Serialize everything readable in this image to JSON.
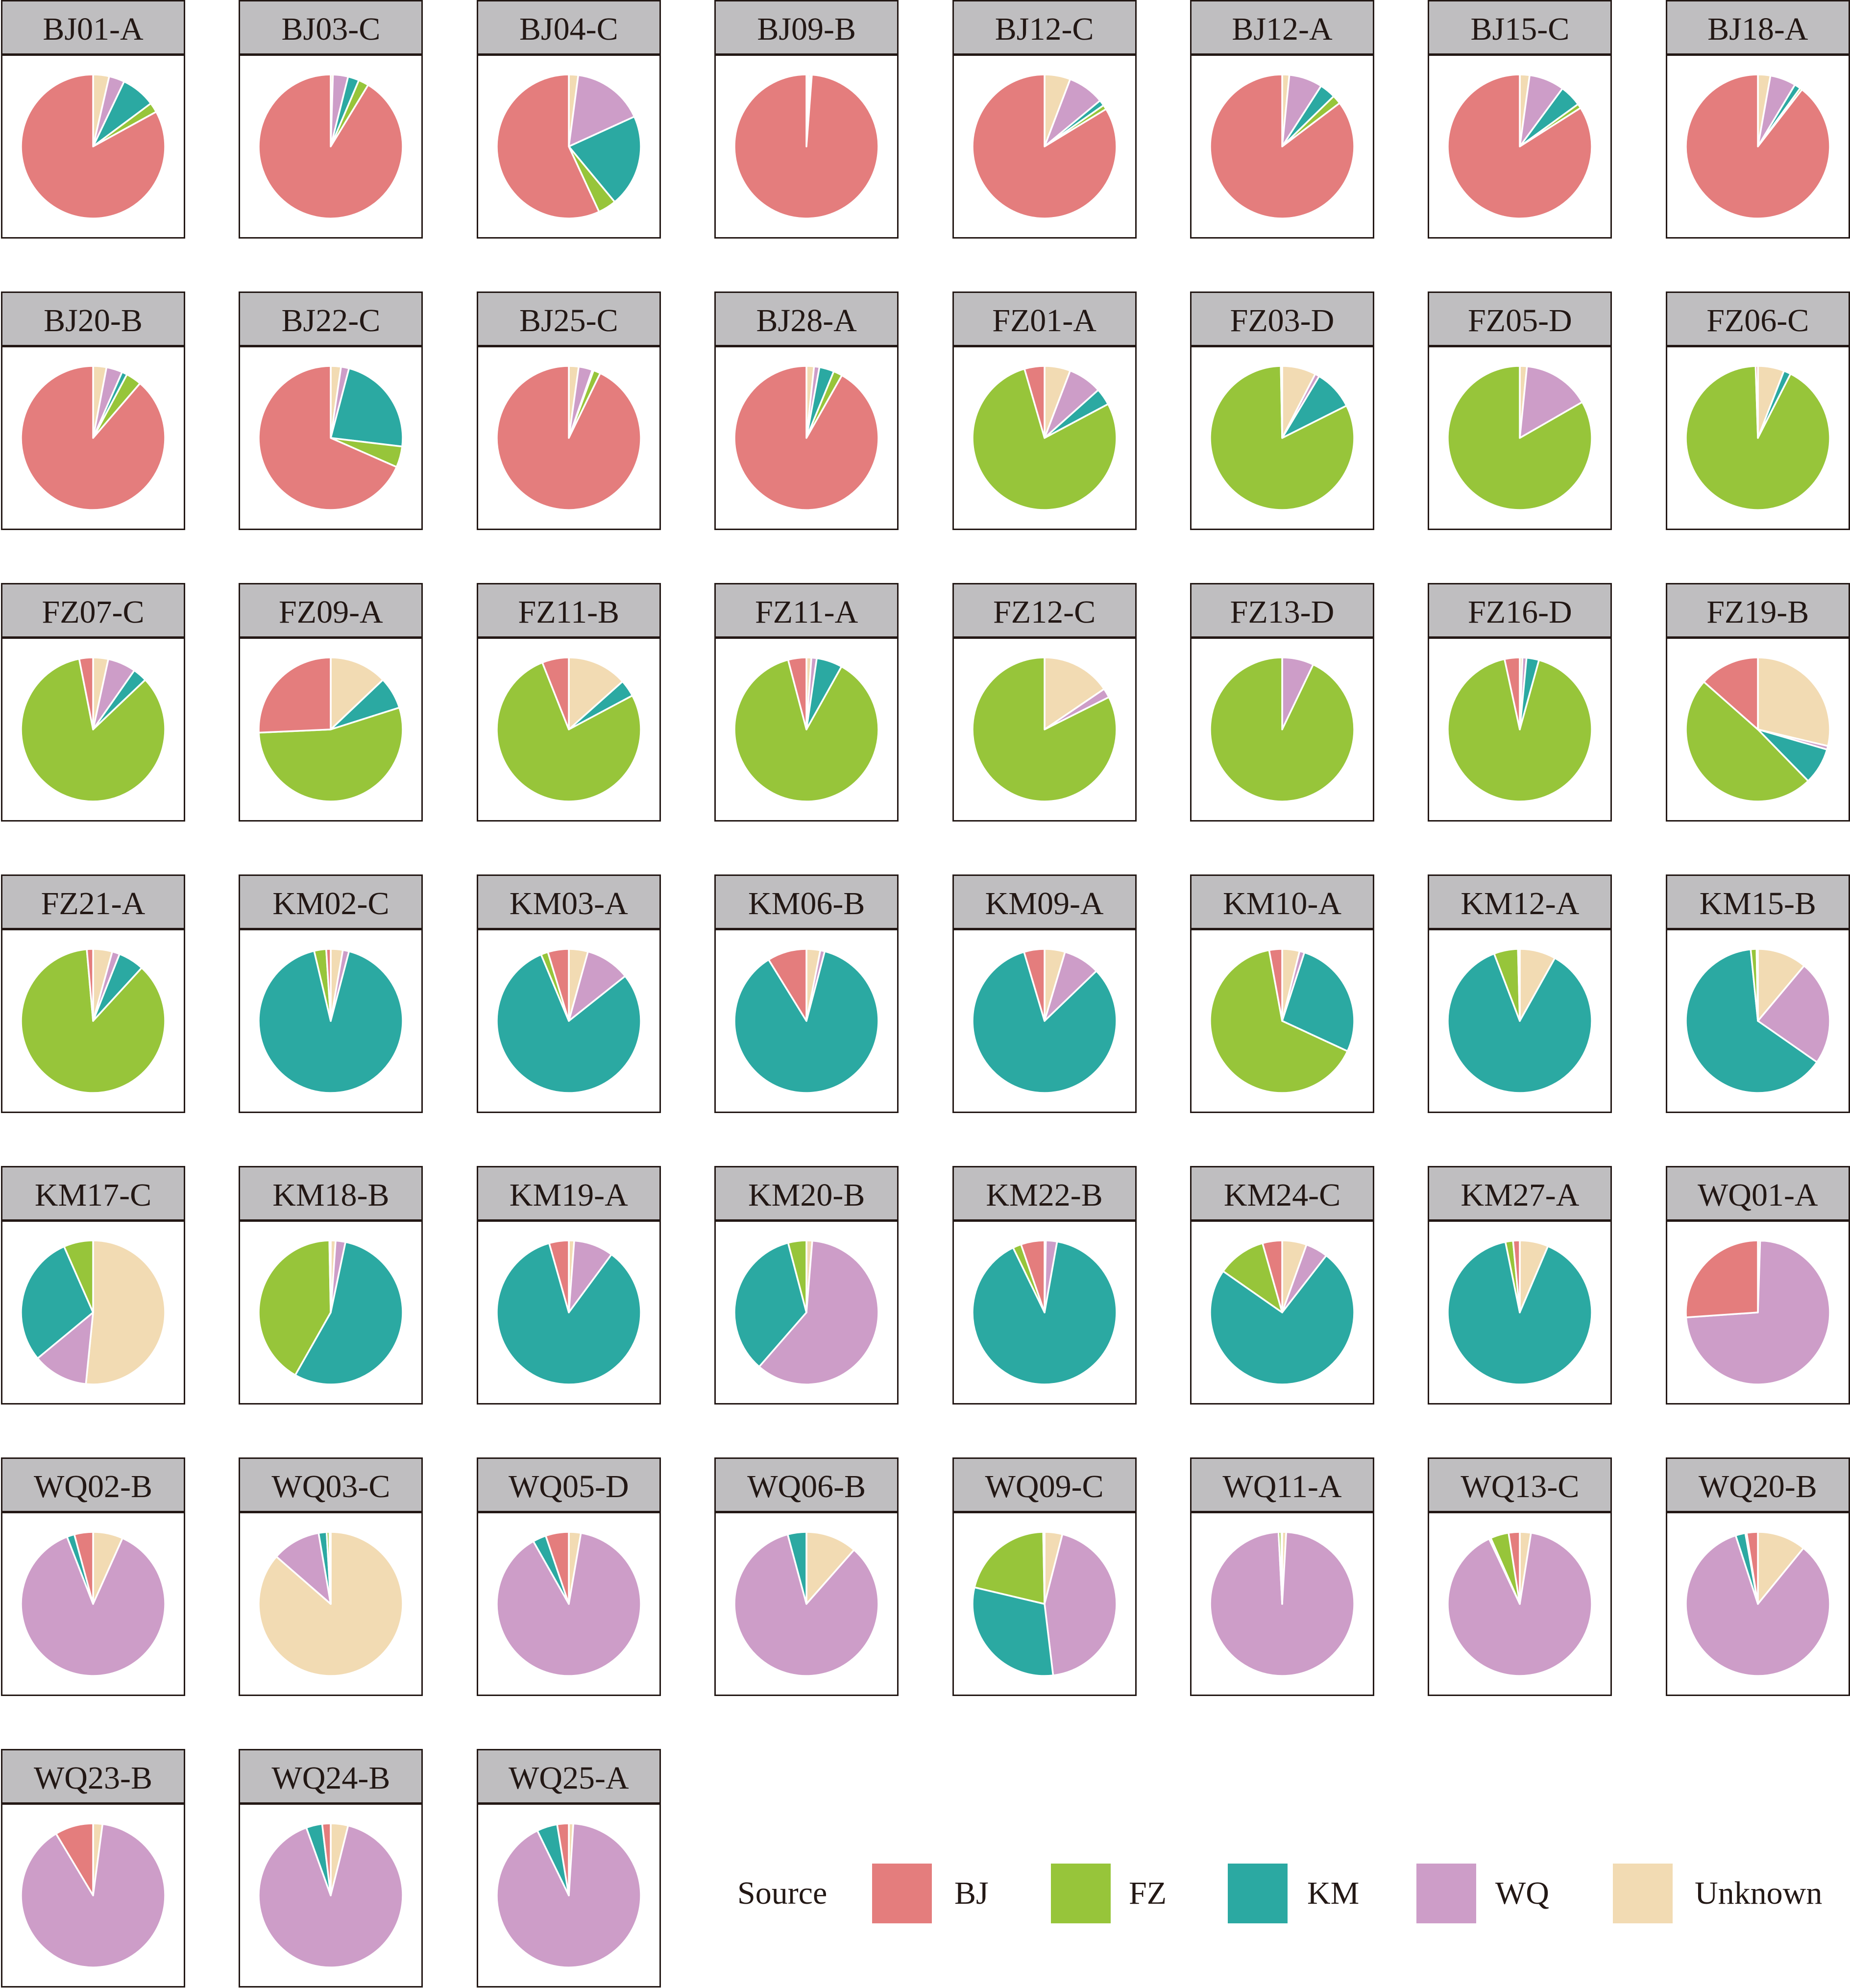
{
  "chart_data": {
    "type": "pie",
    "title": "",
    "units": "percent",
    "categories": [
      "BJ",
      "FZ",
      "KM",
      "WQ",
      "Unknown"
    ],
    "legend": {
      "title": "Source",
      "position": "bottom-right",
      "entries": [
        {
          "label": "BJ",
          "color": "#e47d7d"
        },
        {
          "label": "FZ",
          "color": "#97c53a"
        },
        {
          "label": "KM",
          "color": "#2ba9a2"
        },
        {
          "label": "WQ",
          "color": "#cd9dc8"
        },
        {
          "label": "Unknown",
          "color": "#f2dbb3"
        }
      ]
    },
    "panels": [
      {
        "label": "BJ01-A",
        "values": [
          83.0,
          2.2,
          7.7,
          3.5,
          3.6
        ]
      },
      {
        "label": "BJ03-C",
        "values": [
          91.3,
          2.3,
          2.5,
          3.4,
          0.5
        ]
      },
      {
        "label": "BJ04-C",
        "values": [
          56.9,
          4.1,
          20.8,
          16.1,
          2.1
        ]
      },
      {
        "label": "BJ09-B",
        "values": [
          98.8,
          0.3,
          0.4,
          0.2,
          0.3
        ]
      },
      {
        "label": "BJ12-C",
        "values": [
          83.7,
          1.0,
          1.3,
          8.2,
          5.8
        ]
      },
      {
        "label": "BJ12-A",
        "values": [
          85.3,
          2.0,
          3.6,
          7.5,
          1.6
        ]
      },
      {
        "label": "BJ15-C",
        "values": [
          84.0,
          1.0,
          4.9,
          7.9,
          2.2
        ]
      },
      {
        "label": "BJ18-A",
        "values": [
          89.5,
          0.5,
          1.4,
          5.8,
          2.8
        ]
      },
      {
        "label": "BJ20-B",
        "values": [
          88.7,
          3.5,
          1.2,
          3.6,
          3.0
        ]
      },
      {
        "label": "BJ22-C",
        "values": [
          68.4,
          4.7,
          22.8,
          1.8,
          2.3
        ]
      },
      {
        "label": "BJ25-C",
        "values": [
          92.8,
          1.6,
          0.3,
          3.1,
          2.2
        ]
      },
      {
        "label": "BJ28-A",
        "values": [
          91.8,
          2.0,
          3.3,
          1.2,
          1.7
        ]
      },
      {
        "label": "FZ01-A",
        "values": [
          4.5,
          78.3,
          3.8,
          7.6,
          5.8
        ]
      },
      {
        "label": "FZ03-D",
        "values": [
          0.3,
          82.1,
          9.0,
          1.0,
          7.6
        ]
      },
      {
        "label": "FZ05-D",
        "values": [
          0,
          83.3,
          0,
          15.1,
          1.6
        ]
      },
      {
        "label": "FZ06-C",
        "values": [
          0.5,
          92.0,
          1.6,
          0,
          5.9
        ]
      },
      {
        "label": "FZ07-C",
        "values": [
          3.1,
          84.0,
          3.2,
          6.3,
          3.4
        ]
      },
      {
        "label": "FZ09-A",
        "values": [
          25.7,
          54.2,
          7.2,
          0,
          12.9
        ]
      },
      {
        "label": "FZ11-B",
        "values": [
          6.0,
          76.8,
          3.8,
          0,
          13.4
        ]
      },
      {
        "label": "FZ11-A",
        "values": [
          4.1,
          87.8,
          5.8,
          1.2,
          1.1
        ]
      },
      {
        "label": "FZ12-C",
        "values": [
          0,
          82.4,
          0,
          2.1,
          15.5
        ]
      },
      {
        "label": "FZ13-D",
        "values": [
          0,
          92.9,
          0,
          7.1,
          0
        ]
      },
      {
        "label": "FZ16-D",
        "values": [
          3.4,
          92.3,
          2.8,
          0.9,
          0.6
        ]
      },
      {
        "label": "FZ19-B",
        "values": [
          13.5,
          48.8,
          8.2,
          0.8,
          28.7
        ]
      },
      {
        "label": "FZ21-A",
        "values": [
          1.4,
          86.8,
          5.8,
          1.7,
          4.3
        ]
      },
      {
        "label": "KM02-C",
        "values": [
          1.0,
          2.7,
          92.2,
          1.4,
          2.7
        ]
      },
      {
        "label": "KM03-A",
        "values": [
          4.7,
          1.6,
          79.4,
          10.0,
          4.3
        ]
      },
      {
        "label": "KM06-B",
        "values": [
          8.8,
          0,
          87.1,
          1.0,
          3.1
        ]
      },
      {
        "label": "KM09-A",
        "values": [
          4.6,
          0,
          82.6,
          8.2,
          4.6
        ]
      },
      {
        "label": "KM10-A",
        "values": [
          2.9,
          65.2,
          26.9,
          1.1,
          3.9
        ]
      },
      {
        "label": "KM12-A",
        "values": [
          0.4,
          5.4,
          86.1,
          0,
          8.1
        ]
      },
      {
        "label": "KM15-B",
        "values": [
          0.3,
          1.3,
          63.7,
          23.6,
          11.1
        ]
      },
      {
        "label": "KM17-C",
        "values": [
          0,
          6.6,
          29.4,
          12.4,
          51.6
        ]
      },
      {
        "label": "KM18-B",
        "values": [
          0.3,
          41.5,
          54.9,
          2.2,
          1.1
        ]
      },
      {
        "label": "KM19-A",
        "values": [
          4.4,
          0,
          85.5,
          8.9,
          1.2
        ]
      },
      {
        "label": "KM20-B",
        "values": [
          0,
          4.1,
          34.5,
          60.1,
          1.3
        ]
      },
      {
        "label": "KM22-B",
        "values": [
          5.3,
          1.9,
          90.0,
          2.5,
          0.3
        ]
      },
      {
        "label": "KM24-C",
        "values": [
          4.4,
          10.9,
          74.2,
          5.0,
          5.5
        ]
      },
      {
        "label": "KM27-A",
        "values": [
          1.5,
          1.7,
          90.4,
          0,
          6.4
        ]
      },
      {
        "label": "WQ01-A",
        "values": [
          26.1,
          0,
          0,
          73.4,
          0.5
        ]
      },
      {
        "label": "WQ02-B",
        "values": [
          4.2,
          0,
          1.7,
          87.4,
          6.7
        ]
      },
      {
        "label": "WQ03-C",
        "values": [
          0.3,
          0.6,
          1.8,
          10.9,
          86.4
        ]
      },
      {
        "label": "WQ05-D",
        "values": [
          5.2,
          0,
          3.0,
          89.1,
          2.7
        ]
      },
      {
        "label": "WQ06-B",
        "values": [
          0,
          0,
          4.2,
          84.3,
          11.5
        ]
      },
      {
        "label": "WQ09-C",
        "values": [
          0.3,
          21.0,
          30.6,
          44.1,
          4.0
        ]
      },
      {
        "label": "WQ11-A",
        "values": [
          0.2,
          0.6,
          0,
          98.3,
          0.9
        ]
      },
      {
        "label": "WQ13-C",
        "values": [
          2.5,
          4.1,
          0.4,
          90.5,
          2.5
        ]
      },
      {
        "label": "WQ20-B",
        "values": [
          2.5,
          0.3,
          2.2,
          84.1,
          10.9
        ]
      },
      {
        "label": "WQ23-B",
        "values": [
          8.6,
          0,
          0,
          89.3,
          2.1
        ]
      },
      {
        "label": "WQ24-B",
        "values": [
          1.9,
          0,
          3.6,
          90.6,
          3.9
        ]
      },
      {
        "label": "WQ25-A",
        "values": [
          2.6,
          0,
          4.6,
          91.8,
          1.0
        ]
      }
    ]
  }
}
